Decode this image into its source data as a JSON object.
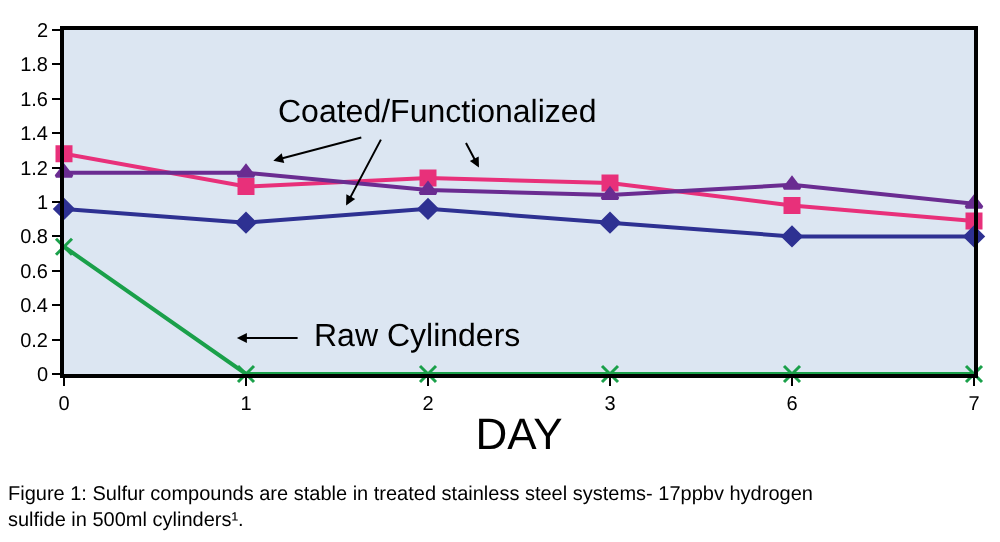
{
  "chart_data": {
    "type": "line",
    "xlabel": "DAY",
    "categories": [
      "0",
      "1",
      "2",
      "3",
      "6",
      "7"
    ],
    "series": [
      {
        "color": "#e8307a",
        "marker": "square",
        "values": [
          1.28,
          1.09,
          1.14,
          1.11,
          0.98,
          0.89
        ]
      },
      {
        "color": "#6a2c91",
        "marker": "triangle",
        "values": [
          1.17,
          1.17,
          1.07,
          1.04,
          1.1,
          0.99
        ]
      },
      {
        "color": "#2e3192",
        "marker": "diamond",
        "values": [
          0.96,
          0.88,
          0.96,
          0.88,
          0.8,
          0.8
        ]
      },
      {
        "color": "#1aa04a",
        "marker": "cross",
        "values": [
          0.74,
          0,
          0,
          0,
          0,
          0
        ]
      }
    ],
    "ylim": [
      0,
      2
    ],
    "yticks": [
      0,
      0.2,
      0.4,
      0.6,
      0.8,
      1,
      1.2,
      1.4,
      1.6,
      1.8,
      2
    ],
    "grid": false,
    "line_style": "solid",
    "annotations": [
      {
        "text": "Coated/Functionalized",
        "x": "1",
        "y": 1.24
      },
      "Raw Cylinders",
      "Figure 1: Sulfur compounds are stable in treated stainless steel systems- 17ppbv hydrogen sulfide in 500ml cylinders¹."
    ]
  }
}
